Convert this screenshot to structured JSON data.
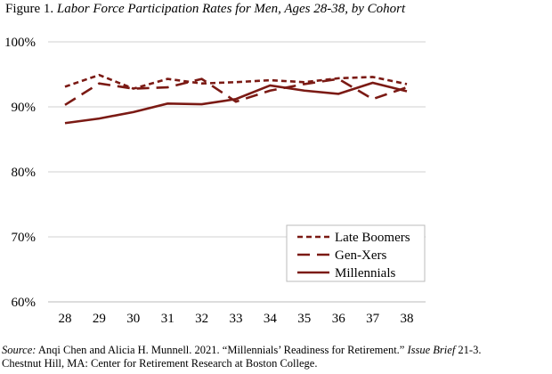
{
  "figure_label": "Figure 1.",
  "title": "Labor Force Participation Rates for Men, Ages 28-38, by Cohort",
  "source": {
    "label": "Source:",
    "text1": " Anqi Chen and Alicia H. Munnell. 2021. “Millennials’ Readiness for Retirement.” ",
    "italic": "Issue Brief",
    "text2": " 21-3.",
    "line2": "Chestnut Hill, MA: Center for Retirement Research at Boston College."
  },
  "chart_data": {
    "type": "line",
    "title": "Labor Force Participation Rates for Men, Ages 28-38, by Cohort",
    "xlabel": "",
    "ylabel": "",
    "x": [
      28,
      29,
      30,
      31,
      32,
      33,
      34,
      35,
      36,
      37,
      38
    ],
    "ylim": [
      60,
      100
    ],
    "yticks": [
      60,
      70,
      80,
      90,
      100
    ],
    "ytick_labels": [
      "60%",
      "70%",
      "80%",
      "90%",
      "100%"
    ],
    "grid": "horizontal",
    "legend": "bottom-right",
    "color": "#7b1a14",
    "series": [
      {
        "name": "Late Boomers",
        "style": "short-dash",
        "values": [
          93.1,
          94.9,
          92.8,
          94.3,
          93.6,
          93.8,
          94.1,
          93.8,
          94.4,
          94.6,
          93.5
        ]
      },
      {
        "name": "Gen-Xers",
        "style": "long-dash",
        "values": [
          90.3,
          93.6,
          92.8,
          93.0,
          94.3,
          90.8,
          92.5,
          93.5,
          94.3,
          91.2,
          93.0
        ]
      },
      {
        "name": "Millennials",
        "style": "solid",
        "values": [
          87.5,
          88.2,
          89.2,
          90.5,
          90.4,
          91.2,
          93.3,
          92.5,
          92.0,
          93.7,
          92.4
        ]
      }
    ]
  }
}
